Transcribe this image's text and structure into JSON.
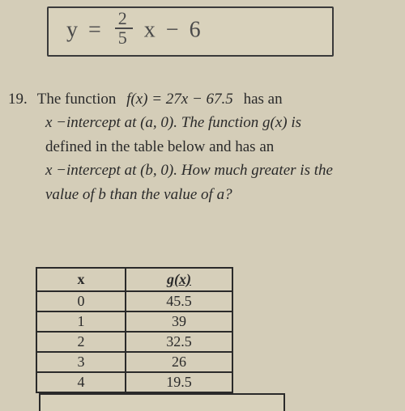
{
  "handwriting": {
    "left": "y =",
    "frac_num": "2",
    "frac_den": "5",
    "right": "x  − 6"
  },
  "question": {
    "number": "19.",
    "line1_a": "The function ",
    "func": "f(x) = 27x − 67.5",
    "line1_b": " has an",
    "line2": "x −intercept at (a, 0). The function g(x) is",
    "line3": "defined in the table below and has an",
    "line4": "x −intercept at (b, 0). How much greater is the",
    "line5": "value of b than the value of a?"
  },
  "table": {
    "header_x": "x",
    "header_g": "g(x)",
    "rows": [
      {
        "x": "0",
        "g": "45.5"
      },
      {
        "x": "1",
        "g": "39"
      },
      {
        "x": "2",
        "g": "32.5"
      },
      {
        "x": "3",
        "g": "26"
      },
      {
        "x": "4",
        "g": "19.5"
      }
    ]
  },
  "styling": {
    "page_bg": "#d4cdb8",
    "text_color": "#2a2a2a",
    "handwriting_color": "#4a4a4a",
    "border_color": "#2a2a2a",
    "body_fontsize": 19,
    "table_fontsize": 18
  }
}
